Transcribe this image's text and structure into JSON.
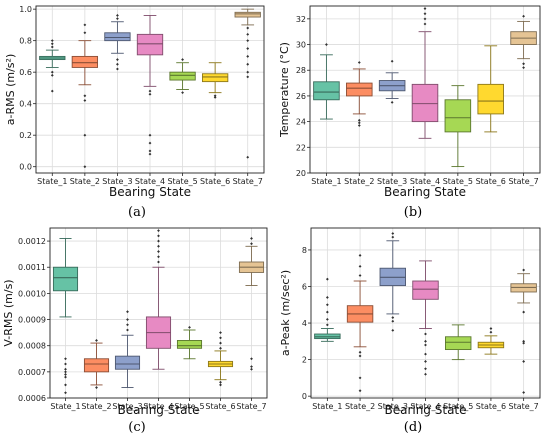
{
  "chart_data": [
    {
      "type": "boxplot",
      "caption": "(a)",
      "xlabel": "Bearing State",
      "ylabel": "a-RMS (m/s²)",
      "categories": [
        "State_1",
        "State_2",
        "State_3",
        "State_4",
        "State_5",
        "State_6",
        "State_7"
      ],
      "ylim": [
        -0.04,
        1.02
      ],
      "yticks": [
        {
          "v": 0.0,
          "t": "0.0"
        },
        {
          "v": 0.2,
          "t": "0.2"
        },
        {
          "v": 0.4,
          "t": "0.4"
        },
        {
          "v": 0.6,
          "t": "0.6"
        },
        {
          "v": 0.8,
          "t": "0.8"
        },
        {
          "v": 1.0,
          "t": "1.0"
        }
      ],
      "boxes": [
        {
          "min": 0.63,
          "q1": 0.68,
          "median": 0.69,
          "q3": 0.7,
          "max": 0.74,
          "outliers": [
            0.76,
            0.78,
            0.8,
            0.6,
            0.58,
            0.48
          ]
        },
        {
          "min": 0.52,
          "q1": 0.63,
          "median": 0.66,
          "q3": 0.7,
          "max": 0.8,
          "outliers": [
            0.85,
            0.9,
            0.45,
            0.42,
            0.2,
            0.0
          ]
        },
        {
          "min": 0.72,
          "q1": 0.8,
          "median": 0.82,
          "q3": 0.85,
          "max": 0.92,
          "outliers": [
            0.94,
            0.96,
            0.68,
            0.65,
            0.62
          ]
        },
        {
          "min": 0.51,
          "q1": 0.71,
          "median": 0.78,
          "q3": 0.84,
          "max": 0.96,
          "outliers": [
            0.48,
            0.46,
            0.2,
            0.15,
            0.1,
            0.08
          ]
        },
        {
          "min": 0.49,
          "q1": 0.55,
          "median": 0.58,
          "q3": 0.6,
          "max": 0.66,
          "outliers": [
            0.68,
            0.47
          ]
        },
        {
          "min": 0.47,
          "q1": 0.54,
          "median": 0.57,
          "q3": 0.59,
          "max": 0.66,
          "outliers": [
            0.45,
            0.44
          ]
        },
        {
          "min": 0.9,
          "q1": 0.95,
          "median": 0.97,
          "q3": 0.98,
          "max": 1.0,
          "outliers": [
            0.88,
            0.84,
            0.8,
            0.75,
            0.7,
            0.65,
            0.6,
            0.57,
            0.06
          ]
        }
      ]
    },
    {
      "type": "boxplot",
      "caption": "(b)",
      "xlabel": "Bearing State",
      "ylabel": "Temperature (°C)",
      "categories": [
        "State_1",
        "State_2",
        "State_3",
        "State_4",
        "State_5",
        "State_6",
        "State_7"
      ],
      "ylim": [
        20,
        33
      ],
      "yticks": [
        {
          "v": 20,
          "t": "20"
        },
        {
          "v": 22,
          "t": "22"
        },
        {
          "v": 24,
          "t": "24"
        },
        {
          "v": 26,
          "t": "26"
        },
        {
          "v": 28,
          "t": "28"
        },
        {
          "v": 30,
          "t": "30"
        },
        {
          "v": 32,
          "t": "32"
        }
      ],
      "boxes": [
        {
          "min": 24.2,
          "q1": 25.7,
          "median": 26.3,
          "q3": 27.1,
          "max": 29.2,
          "outliers": [
            30.0
          ]
        },
        {
          "min": 24.6,
          "q1": 26.0,
          "median": 26.6,
          "q3": 27.0,
          "max": 28.1,
          "outliers": [
            28.6,
            24.1,
            23.9,
            23.7
          ]
        },
        {
          "min": 25.8,
          "q1": 26.4,
          "median": 26.8,
          "q3": 27.2,
          "max": 27.8,
          "outliers": [
            28.7,
            25.5
          ]
        },
        {
          "min": 22.7,
          "q1": 24.0,
          "median": 25.4,
          "q3": 26.9,
          "max": 31.0,
          "outliers": [
            31.6,
            32.0,
            32.4,
            32.8
          ]
        },
        {
          "min": 20.5,
          "q1": 23.2,
          "median": 24.3,
          "q3": 25.7,
          "max": 26.8,
          "outliers": []
        },
        {
          "min": 23.2,
          "q1": 24.6,
          "median": 25.6,
          "q3": 26.9,
          "max": 29.9,
          "outliers": []
        },
        {
          "min": 28.9,
          "q1": 30.0,
          "median": 30.5,
          "q3": 31.0,
          "max": 31.8,
          "outliers": [
            32.2,
            28.5,
            28.2
          ]
        }
      ]
    },
    {
      "type": "boxplot",
      "caption": "(c)",
      "xlabel": "Bearing State",
      "ylabel": "V-RMS (m/s)",
      "categories": [
        "State_1",
        "State_2",
        "State_3",
        "State_4",
        "State_5",
        "State_6",
        "State_7"
      ],
      "ylim": [
        0.0006,
        0.00125
      ],
      "yticks": [
        {
          "v": 0.0006,
          "t": "0.0006"
        },
        {
          "v": 0.0007,
          "t": "0.0007"
        },
        {
          "v": 0.0008,
          "t": "0.0008"
        },
        {
          "v": 0.0009,
          "t": "0.0009"
        },
        {
          "v": 0.001,
          "t": "0.0010"
        },
        {
          "v": 0.0011,
          "t": "0.0011"
        },
        {
          "v": 0.0012,
          "t": "0.0012"
        }
      ],
      "boxes": [
        {
          "min": 0.00091,
          "q1": 0.00101,
          "median": 0.00106,
          "q3": 0.0011,
          "max": 0.00121,
          "outliers": [
            0.00075,
            0.00073,
            0.00071,
            0.0007,
            0.00069,
            0.00068,
            0.00065,
            0.00062
          ]
        },
        {
          "min": 0.00065,
          "q1": 0.0007,
          "median": 0.00073,
          "q3": 0.00075,
          "max": 0.00081,
          "outliers": [
            0.00082,
            0.00064
          ]
        },
        {
          "min": 0.00064,
          "q1": 0.00071,
          "median": 0.00073,
          "q3": 0.00076,
          "max": 0.00084,
          "outliers": [
            0.00086,
            0.00088,
            0.0009,
            0.00093
          ]
        },
        {
          "min": 0.00071,
          "q1": 0.00079,
          "median": 0.00085,
          "q3": 0.00091,
          "max": 0.0011,
          "outliers": [
            0.00112,
            0.00114,
            0.00116,
            0.00118,
            0.0012,
            0.00122,
            0.00124
          ]
        },
        {
          "min": 0.00075,
          "q1": 0.00079,
          "median": 0.0008,
          "q3": 0.00082,
          "max": 0.00086,
          "outliers": [
            0.00087
          ]
        },
        {
          "min": 0.00067,
          "q1": 0.00072,
          "median": 0.00073,
          "q3": 0.00074,
          "max": 0.00078,
          "outliers": [
            0.00079,
            0.00081,
            0.00083,
            0.00085,
            0.00066,
            0.00065
          ]
        },
        {
          "min": 0.00103,
          "q1": 0.00108,
          "median": 0.0011,
          "q3": 0.00112,
          "max": 0.00118,
          "outliers": [
            0.00119,
            0.00121,
            0.00075,
            0.00072,
            0.00071
          ]
        }
      ]
    },
    {
      "type": "boxplot",
      "caption": "(d)",
      "xlabel": "Bearing State",
      "ylabel": "a-Peak (m/sec²)",
      "categories": [
        "State_1",
        "State_2",
        "State_3",
        "State_4",
        "State_5",
        "State_6",
        "State_7"
      ],
      "ylim": [
        -0.1,
        9.2
      ],
      "yticks": [
        {
          "v": 0,
          "t": "0"
        },
        {
          "v": 2,
          "t": "2"
        },
        {
          "v": 4,
          "t": "4"
        },
        {
          "v": 6,
          "t": "6"
        },
        {
          "v": 8,
          "t": "8"
        }
      ],
      "boxes": [
        {
          "min": 3.0,
          "q1": 3.15,
          "median": 3.25,
          "q3": 3.4,
          "max": 3.7,
          "outliers": [
            3.9,
            4.2,
            4.6,
            5.0,
            5.4,
            6.4
          ]
        },
        {
          "min": 2.7,
          "q1": 4.05,
          "median": 4.5,
          "q3": 4.95,
          "max": 6.3,
          "outliers": [
            6.6,
            7.1,
            7.7,
            2.4,
            2.2,
            1.0,
            0.3
          ]
        },
        {
          "min": 4.5,
          "q1": 6.05,
          "median": 6.5,
          "q3": 7.0,
          "max": 8.5,
          "outliers": [
            8.7,
            8.9,
            4.3,
            4.1,
            3.6
          ]
        },
        {
          "min": 3.7,
          "q1": 5.3,
          "median": 5.85,
          "q3": 6.3,
          "max": 7.4,
          "outliers": [
            3.4,
            3.0,
            2.8,
            2.3,
            1.9,
            1.5,
            1.2
          ]
        },
        {
          "min": 2.0,
          "q1": 2.55,
          "median": 2.95,
          "q3": 3.25,
          "max": 3.9,
          "outliers": []
        },
        {
          "min": 2.3,
          "q1": 2.65,
          "median": 2.8,
          "q3": 2.95,
          "max": 3.3,
          "outliers": [
            3.5,
            3.7
          ]
        },
        {
          "min": 5.1,
          "q1": 5.7,
          "median": 5.95,
          "q3": 6.15,
          "max": 6.7,
          "outliers": [
            6.9,
            4.6,
            3.0,
            2.9,
            1.9,
            0.2
          ]
        }
      ]
    }
  ],
  "colors": [
    "#66c2a5",
    "#fc8d62",
    "#8da0cb",
    "#e78ac3",
    "#a6d854",
    "#ffd92f",
    "#e5c494"
  ]
}
